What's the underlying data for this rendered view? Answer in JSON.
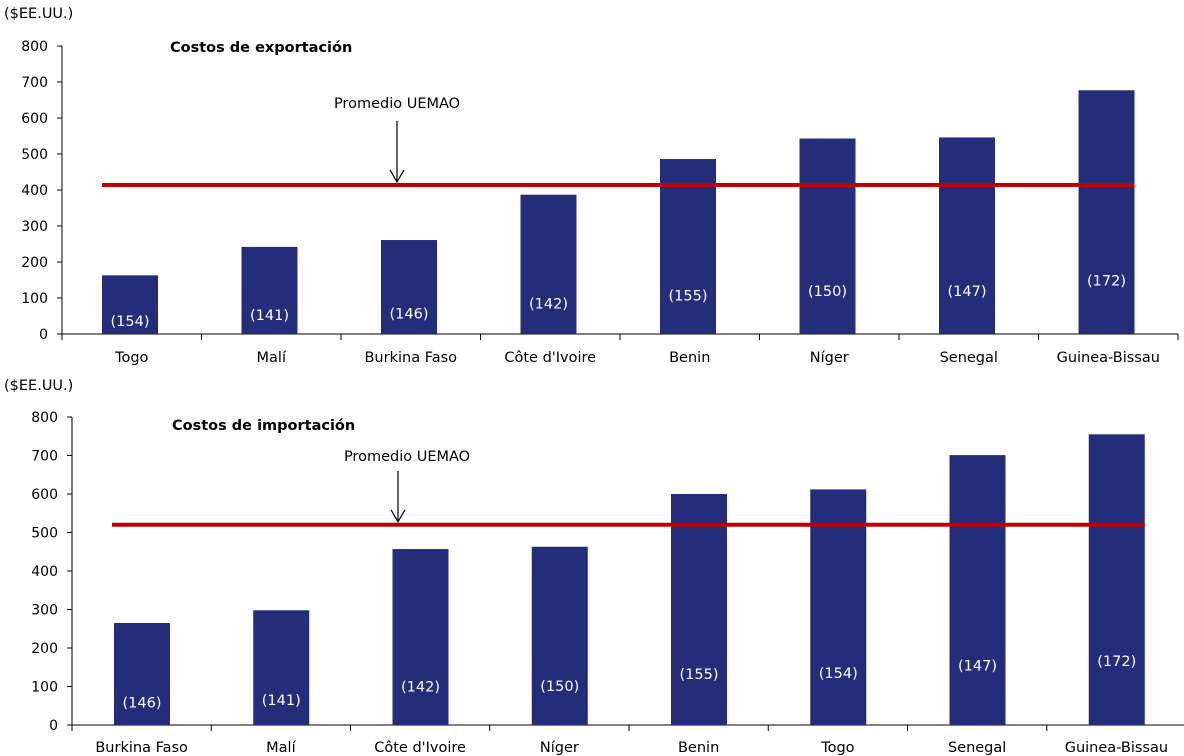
{
  "chart_data": [
    {
      "type": "bar",
      "title": "Costos de exportación",
      "unit_label": "($EE.UU.)",
      "ylim": [
        0,
        800
      ],
      "yticks": [
        0,
        100,
        200,
        300,
        400,
        500,
        600,
        700,
        800
      ],
      "categories": [
        "Togo",
        "Malí",
        "Burkina Faso",
        "Côte d'Ivoire",
        "Benin",
        "Níger",
        "Senegal",
        "Guinea-Bissau"
      ],
      "values": [
        163,
        242,
        261,
        387,
        486,
        543,
        546,
        677
      ],
      "bar_labels": [
        "(154)",
        "(141)",
        "(146)",
        "(142)",
        "(155)",
        "(150)",
        "(147)",
        "(172)"
      ],
      "average": {
        "label": "Promedio UEMAO",
        "value": 414
      },
      "grid": false,
      "bar_color": "#232d7a",
      "average_color": "#c00000"
    },
    {
      "type": "bar",
      "title": "Costos de importación",
      "unit_label": "($EE.UU.)",
      "ylim": [
        0,
        800
      ],
      "yticks": [
        0,
        100,
        200,
        300,
        400,
        500,
        600,
        700,
        800
      ],
      "categories": [
        "Burkina Faso",
        "Malí",
        "Côte d'Ivoire",
        "Níger",
        "Benin",
        "Togo",
        "Senegal",
        "Guinea-Bissau"
      ],
      "values": [
        265,
        298,
        457,
        463,
        600,
        612,
        701,
        755
      ],
      "bar_labels": [
        "(146)",
        "(141)",
        "(142)",
        "(150)",
        "(155)",
        "(154)",
        "(147)",
        "(172)"
      ],
      "average": {
        "label": "Promedio UEMAO",
        "value": 520
      },
      "grid": false,
      "bar_color": "#232d7a",
      "average_color": "#c00000"
    }
  ]
}
